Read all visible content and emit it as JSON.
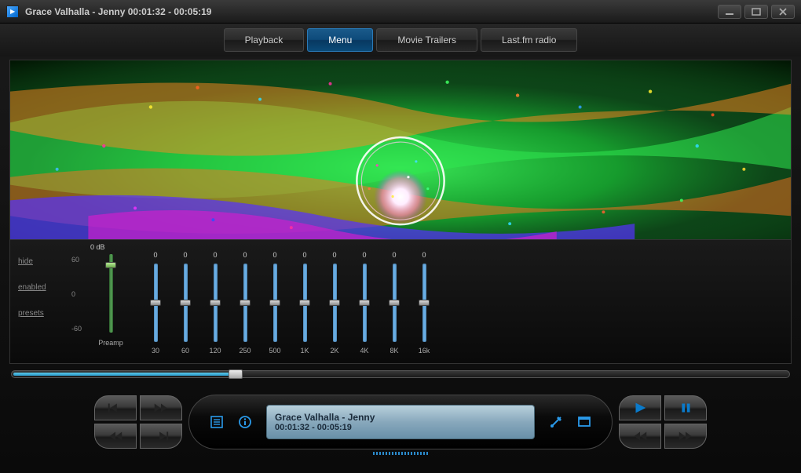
{
  "titlebar": {
    "artist": "Grace Valhalla",
    "track": "Jenny",
    "elapsed": "00:01:32",
    "total": "00:05:19",
    "full": "Grace Valhalla - Jenny  00:01:32 - 00:05:19"
  },
  "menu": {
    "tabs": [
      {
        "label": "Playback",
        "active": false
      },
      {
        "label": "Menu",
        "active": true
      },
      {
        "label": "Movie Trailers",
        "active": false
      },
      {
        "label": "Last.fm radio",
        "active": false
      }
    ]
  },
  "equalizer": {
    "links": [
      "hide",
      "enabled",
      "presets"
    ],
    "preamp": {
      "db_label": "0 dB",
      "scale": [
        "60",
        "0",
        "-60"
      ],
      "label": "Preamp",
      "value_percent": 10,
      "color": "#6db33f"
    },
    "bands": [
      {
        "freq": "30",
        "value": "0",
        "pos_percent": 46
      },
      {
        "freq": "60",
        "value": "0",
        "pos_percent": 46
      },
      {
        "freq": "120",
        "value": "0",
        "pos_percent": 46
      },
      {
        "freq": "250",
        "value": "0",
        "pos_percent": 46
      },
      {
        "freq": "500",
        "value": "0",
        "pos_percent": 46
      },
      {
        "freq": "1K",
        "value": "0",
        "pos_percent": 46
      },
      {
        "freq": "2K",
        "value": "0",
        "pos_percent": 46
      },
      {
        "freq": "4K",
        "value": "0",
        "pos_percent": 46
      },
      {
        "freq": "8K",
        "value": "0",
        "pos_percent": 46
      },
      {
        "freq": "16k",
        "value": "0",
        "pos_percent": 46
      }
    ],
    "slider_color": "#7ab8e8"
  },
  "progress": {
    "percent": 28.8
  },
  "track_display": {
    "title": "Grace Valhalla - Jenny",
    "time": "00:01:32 - 00:05:19"
  },
  "colors": {
    "accent": "#2a9aea",
    "active_tab": "#0d5a9a",
    "panel_bg": "#0a0a0a",
    "text": "#b0b0b0",
    "display_bg": "#88a8bc",
    "display_text": "#1a2a3a"
  },
  "controls": {
    "left_group": [
      "prev-track",
      "fast-forward",
      "rewind",
      "next-track"
    ],
    "center_icons": [
      "playlist-icon",
      "info-icon",
      "tools-icon",
      "fullscreen-icon"
    ],
    "right_group": [
      "play",
      "pause",
      "repeat",
      "shuffle"
    ]
  },
  "visualizer": {
    "type": "radial-particles",
    "colors": [
      "#00ff40",
      "#ff7000",
      "#ff00aa",
      "#4040ff",
      "#00e0ff",
      "#ffff20"
    ],
    "background": "#000000"
  }
}
